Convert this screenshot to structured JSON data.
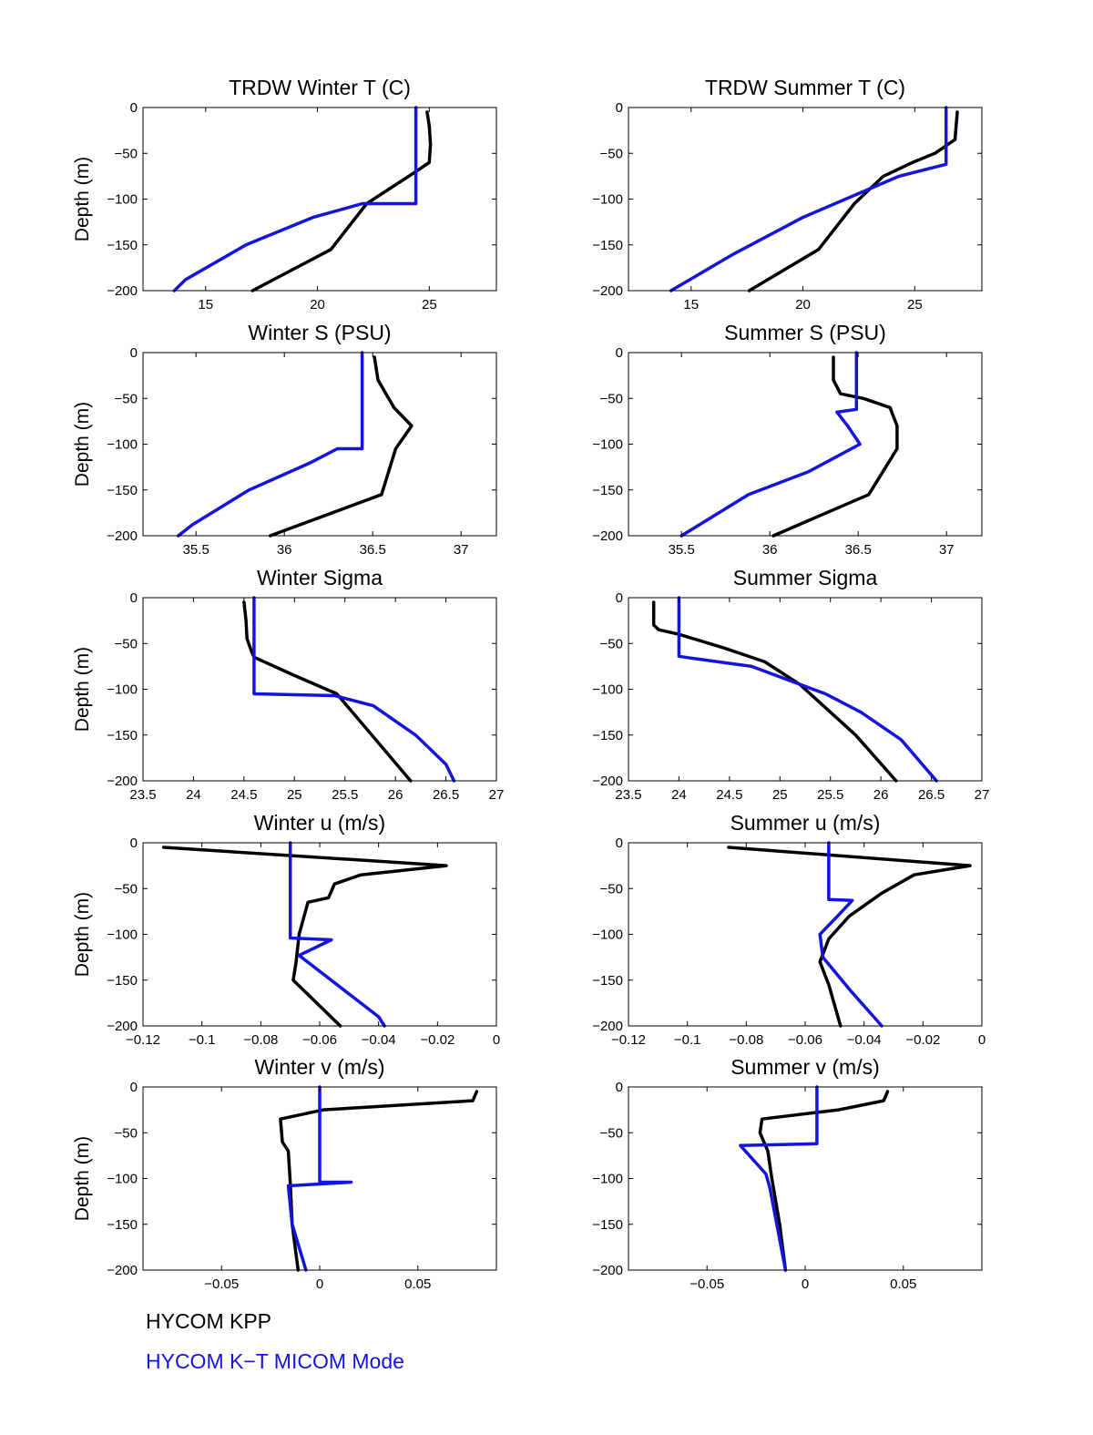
{
  "legend": {
    "kpp_label": "HYCOM KPP",
    "kt_label": "HYCOM K−T MICOM Mode",
    "kpp_color": "#000000",
    "kt_color": "#1414dc"
  },
  "chart_data": [
    {
      "type": "line",
      "title": "TRDW Winter T (C)",
      "ylabel": "Depth (m)",
      "xlim": [
        12.2,
        28
      ],
      "ylim": [
        -200,
        0
      ],
      "xticks": [
        15,
        20,
        25
      ],
      "yticks": [
        0,
        -50,
        -100,
        -150,
        -200
      ],
      "series": [
        {
          "x": [
            24.9,
            25,
            25.05,
            25,
            24.4,
            22.2,
            20.6,
            17.1
          ],
          "y": [
            -5,
            -20,
            -40,
            -60,
            -70,
            -105,
            -155,
            -200
          ],
          "color": "#000000"
        },
        {
          "x": [
            24.4,
            24.4,
            24.4,
            22.0,
            19.8,
            16.8,
            14.1,
            13.6
          ],
          "y": [
            0,
            -50,
            -105,
            -105,
            -120,
            -150,
            -188,
            -200
          ],
          "color": "#1414dc"
        }
      ]
    },
    {
      "type": "line",
      "title": "TRDW Summer T (C)",
      "ylabel": "",
      "xlim": [
        12.2,
        28
      ],
      "ylim": [
        -200,
        0
      ],
      "xticks": [
        15,
        20,
        25
      ],
      "yticks": [
        0,
        -50,
        -100,
        -150,
        -200
      ],
      "series": [
        {
          "x": [
            26.9,
            26.8,
            25.9,
            24.9,
            23.6,
            22.3,
            20.7,
            17.6
          ],
          "y": [
            -5,
            -35,
            -50,
            -60,
            -75,
            -105,
            -155,
            -200
          ],
          "color": "#000000"
        },
        {
          "x": [
            26.4,
            26.4,
            26.4,
            24.3,
            20.0,
            16.9,
            14.1
          ],
          "y": [
            0,
            -40,
            -62,
            -75,
            -120,
            -160,
            -200
          ],
          "color": "#1414dc"
        }
      ]
    },
    {
      "type": "line",
      "title": "Winter S (PSU)",
      "ylabel": "Depth (m)",
      "xlim": [
        35.2,
        37.2
      ],
      "ylim": [
        -200,
        0
      ],
      "xticks": [
        35.5,
        36,
        36.5,
        37
      ],
      "yticks": [
        0,
        -50,
        -100,
        -150,
        -200
      ],
      "series": [
        {
          "x": [
            36.51,
            36.53,
            36.59,
            36.62,
            36.72,
            36.63,
            36.55,
            35.92
          ],
          "y": [
            -5,
            -30,
            -50,
            -60,
            -80,
            -105,
            -155,
            -200
          ],
          "color": "#000000"
        },
        {
          "x": [
            36.44,
            36.44,
            36.44,
            36.3,
            36.15,
            35.8,
            35.48,
            35.4
          ],
          "y": [
            0,
            -50,
            -105,
            -105,
            -120,
            -150,
            -188,
            -200
          ],
          "color": "#1414dc"
        }
      ]
    },
    {
      "type": "line",
      "title": "Summer S (PSU)",
      "ylabel": "",
      "xlim": [
        35.2,
        37.2
      ],
      "ylim": [
        -200,
        0
      ],
      "xticks": [
        35.5,
        36,
        36.5,
        37
      ],
      "yticks": [
        0,
        -50,
        -100,
        -150,
        -200
      ],
      "series": [
        {
          "x": [
            36.36,
            36.36,
            36.4,
            36.53,
            36.68,
            36.72,
            36.72,
            36.56,
            36.02
          ],
          "y": [
            -5,
            -30,
            -45,
            -50,
            -60,
            -80,
            -105,
            -155,
            -200
          ],
          "color": "#000000"
        },
        {
          "x": [
            36.49,
            36.49,
            36.49,
            36.38,
            36.44,
            36.51,
            36.22,
            35.88,
            35.5
          ],
          "y": [
            0,
            -40,
            -62,
            -65,
            -80,
            -100,
            -130,
            -155,
            -200
          ],
          "color": "#1414dc"
        }
      ]
    },
    {
      "type": "line",
      "title": "Winter Sigma",
      "ylabel": "Depth (m)",
      "xlim": [
        23.5,
        27
      ],
      "ylim": [
        -200,
        0
      ],
      "xticks": [
        23.5,
        24,
        24.5,
        25,
        25.5,
        26,
        26.5,
        27
      ],
      "yticks": [
        0,
        -50,
        -100,
        -150,
        -200
      ],
      "series": [
        {
          "x": [
            24.5,
            24.52,
            24.53,
            24.58,
            24.6,
            25.0,
            25.42,
            26.15
          ],
          "y": [
            -5,
            -25,
            -45,
            -60,
            -65,
            -85,
            -105,
            -200
          ],
          "color": "#000000"
        },
        {
          "x": [
            24.6,
            24.6,
            24.6,
            25.4,
            25.78,
            26.2,
            26.5,
            26.58
          ],
          "y": [
            0,
            -50,
            -105,
            -107,
            -118,
            -150,
            -182,
            -200
          ],
          "color": "#1414dc"
        }
      ]
    },
    {
      "type": "line",
      "title": "Summer Sigma",
      "ylabel": "",
      "xlim": [
        23.5,
        27
      ],
      "ylim": [
        -200,
        0
      ],
      "xticks": [
        23.5,
        24,
        24.5,
        25,
        25.5,
        26,
        26.5,
        27
      ],
      "yticks": [
        0,
        -50,
        -100,
        -150,
        -200
      ],
      "series": [
        {
          "x": [
            23.75,
            23.75,
            23.8,
            24.0,
            24.45,
            24.85,
            25.2,
            25.75,
            26.15
          ],
          "y": [
            -5,
            -30,
            -35,
            -40,
            -55,
            -70,
            -95,
            -150,
            -200
          ],
          "color": "#000000"
        },
        {
          "x": [
            24.0,
            24.0,
            24.0,
            24.12,
            24.72,
            25.45,
            25.8,
            26.2,
            26.55
          ],
          "y": [
            0,
            -40,
            -64,
            -66,
            -75,
            -105,
            -125,
            -155,
            -200
          ],
          "color": "#1414dc"
        }
      ]
    },
    {
      "type": "line",
      "title": "Winter u (m/s)",
      "ylabel": "Depth (m)",
      "xlim": [
        -0.12,
        0
      ],
      "ylim": [
        -200,
        0
      ],
      "xticks": [
        -0.12,
        -0.1,
        -0.08,
        -0.06,
        -0.04,
        -0.02,
        0
      ],
      "xticklabels": [
        "−0.12",
        "−0.1",
        "−0.08",
        "−0.06",
        "−0.04",
        "−0.02",
        "0"
      ],
      "yticks": [
        0,
        -50,
        -100,
        -150,
        -200
      ],
      "series": [
        {
          "x": [
            -0.113,
            -0.017,
            -0.046,
            -0.055,
            -0.057,
            -0.064,
            -0.067,
            -0.068,
            -0.069,
            -0.053
          ],
          "y": [
            -5,
            -25,
            -35,
            -45,
            -60,
            -65,
            -100,
            -130,
            -150,
            -200
          ],
          "color": "#000000"
        },
        {
          "x": [
            -0.07,
            -0.07,
            -0.07,
            -0.056,
            -0.067,
            -0.04,
            -0.038
          ],
          "y": [
            0,
            -50,
            -104,
            -106,
            -123,
            -190,
            -200
          ],
          "color": "#1414dc"
        }
      ]
    },
    {
      "type": "line",
      "title": "Summer u (m/s)",
      "ylabel": "",
      "xlim": [
        -0.12,
        0
      ],
      "ylim": [
        -200,
        0
      ],
      "xticks": [
        -0.12,
        -0.1,
        -0.08,
        -0.06,
        -0.04,
        -0.02,
        0
      ],
      "xticklabels": [
        "−0.12",
        "−0.1",
        "−0.08",
        "−0.06",
        "−0.04",
        "−0.02",
        "0"
      ],
      "yticks": [
        0,
        -50,
        -100,
        -150,
        -200
      ],
      "series": [
        {
          "x": [
            -0.086,
            -0.004,
            -0.023,
            -0.034,
            -0.045,
            -0.052,
            -0.055,
            -0.052,
            -0.048
          ],
          "y": [
            -5,
            -25,
            -35,
            -55,
            -80,
            -105,
            -130,
            -155,
            -200
          ],
          "color": "#000000"
        },
        {
          "x": [
            -0.052,
            -0.052,
            -0.052,
            -0.044,
            -0.049,
            -0.055,
            -0.054,
            -0.045,
            -0.034
          ],
          "y": [
            0,
            -50,
            -62,
            -63,
            -80,
            -100,
            -125,
            -160,
            -200
          ],
          "color": "#1414dc"
        }
      ]
    },
    {
      "type": "line",
      "title": "Winter v (m/s)",
      "ylabel": "Depth (m)",
      "xlim": [
        -0.09,
        0.09
      ],
      "ylim": [
        -200,
        0
      ],
      "xticks": [
        -0.05,
        0,
        0.05
      ],
      "xticklabels": [
        "−0.05",
        "0",
        "0.05"
      ],
      "yticks": [
        0,
        -50,
        -100,
        -150,
        -200
      ],
      "series": [
        {
          "x": [
            0.08,
            0.078,
            0.002,
            -0.02,
            -0.019,
            -0.016,
            -0.015,
            -0.014,
            -0.011
          ],
          "y": [
            -5,
            -15,
            -25,
            -35,
            -60,
            -70,
            -105,
            -150,
            -200
          ],
          "color": "#000000"
        },
        {
          "x": [
            0,
            0,
            0,
            0.016,
            -0.016,
            -0.014,
            -0.007
          ],
          "y": [
            0,
            -50,
            -104,
            -104,
            -108,
            -150,
            -200
          ],
          "color": "#1414dc"
        }
      ]
    },
    {
      "type": "line",
      "title": "Summer v (m/s)",
      "ylabel": "",
      "xlim": [
        -0.09,
        0.09
      ],
      "ylim": [
        -200,
        0
      ],
      "xticks": [
        -0.05,
        0,
        0.05
      ],
      "xticklabels": [
        "−0.05",
        "0",
        "0.05"
      ],
      "yticks": [
        0,
        -50,
        -100,
        -150,
        -200
      ],
      "series": [
        {
          "x": [
            0.042,
            0.04,
            0.017,
            -0.022,
            -0.023,
            -0.019,
            -0.017,
            -0.013,
            -0.01
          ],
          "y": [
            -5,
            -15,
            -25,
            -35,
            -50,
            -70,
            -100,
            -150,
            -200
          ],
          "color": "#000000"
        },
        {
          "x": [
            0.006,
            0.006,
            0.006,
            -0.033,
            -0.02,
            -0.018,
            -0.01
          ],
          "y": [
            0,
            -40,
            -62,
            -64,
            -95,
            -110,
            -200
          ],
          "color": "#1414dc"
        }
      ]
    }
  ]
}
